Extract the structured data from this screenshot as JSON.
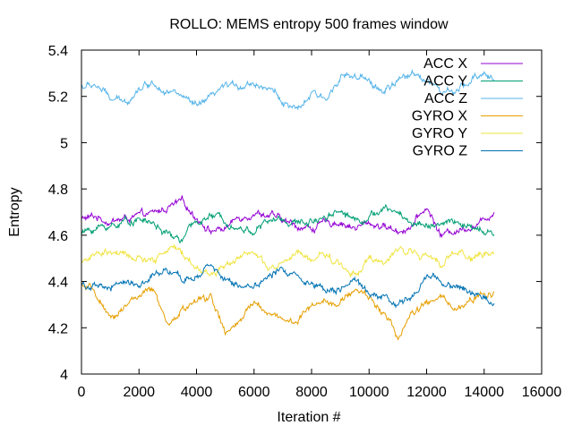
{
  "chart_data": {
    "type": "line",
    "title": "ROLLO: MEMS entropy 500 frames window",
    "xlabel": "Iteration #",
    "ylabel": "Entropy",
    "xlim": [
      0,
      16000
    ],
    "ylim": [
      4,
      5.4
    ],
    "xticks": [
      "0",
      "2000",
      "4000",
      "6000",
      "8000",
      "10000",
      "12000",
      "14000",
      "16000"
    ],
    "yticks": [
      "4",
      "4.2",
      "4.4",
      "4.6",
      "4.8",
      "5",
      "5.2",
      "5.4"
    ],
    "grid": false,
    "legend_position": "top-right",
    "series": [
      {
        "name": "ACC X",
        "color": "#9400d3",
        "x": [
          0,
          500,
          1000,
          1500,
          2000,
          2500,
          3000,
          3500,
          4000,
          4500,
          5000,
          5500,
          6000,
          6500,
          7000,
          7500,
          8000,
          8500,
          9000,
          9500,
          10000,
          10500,
          11000,
          11500,
          12000,
          12500,
          13000,
          13500,
          14000,
          14350
        ],
        "values": [
          4.67,
          4.68,
          4.66,
          4.67,
          4.68,
          4.69,
          4.72,
          4.74,
          4.68,
          4.62,
          4.63,
          4.68,
          4.7,
          4.69,
          4.66,
          4.64,
          4.63,
          4.65,
          4.66,
          4.63,
          4.65,
          4.64,
          4.62,
          4.64,
          4.72,
          4.6,
          4.62,
          4.64,
          4.66,
          4.71
        ]
      },
      {
        "name": "ACC Y",
        "color": "#009e73",
        "x": [
          0,
          500,
          1000,
          1500,
          2000,
          2500,
          3000,
          3500,
          4000,
          4500,
          5000,
          5500,
          6000,
          6500,
          7000,
          7500,
          8000,
          8500,
          9000,
          9500,
          10000,
          10500,
          11000,
          11500,
          12000,
          12500,
          13000,
          13500,
          14000,
          14350
        ],
        "values": [
          4.61,
          4.63,
          4.64,
          4.66,
          4.67,
          4.65,
          4.6,
          4.58,
          4.66,
          4.68,
          4.67,
          4.63,
          4.62,
          4.66,
          4.67,
          4.65,
          4.66,
          4.69,
          4.71,
          4.67,
          4.68,
          4.71,
          4.7,
          4.65,
          4.65,
          4.64,
          4.66,
          4.63,
          4.61,
          4.6
        ]
      },
      {
        "name": "ACC Z",
        "color": "#56b4e9",
        "x": [
          0,
          500,
          1000,
          1500,
          2000,
          2500,
          3000,
          3500,
          4000,
          4500,
          5000,
          5500,
          6000,
          6500,
          7000,
          7500,
          8000,
          8500,
          9000,
          9500,
          10000,
          10500,
          11000,
          11500,
          12000,
          12500,
          13000,
          13500,
          14000,
          14350
        ],
        "values": [
          5.24,
          5.25,
          5.19,
          5.17,
          5.24,
          5.26,
          5.23,
          5.2,
          5.15,
          5.19,
          5.24,
          5.25,
          5.26,
          5.24,
          5.18,
          5.13,
          5.21,
          5.18,
          5.3,
          5.28,
          5.26,
          5.22,
          5.26,
          5.3,
          5.28,
          5.22,
          5.21,
          5.26,
          5.31,
          5.27
        ]
      },
      {
        "name": "GYRO X",
        "color": "#e69f00",
        "x": [
          0,
          500,
          1000,
          1500,
          2000,
          2500,
          3000,
          3500,
          4000,
          4500,
          5000,
          5500,
          6000,
          6500,
          7000,
          7500,
          8000,
          8500,
          9000,
          9500,
          10000,
          10500,
          11000,
          11500,
          12000,
          12500,
          13000,
          13500,
          14000,
          14350
        ],
        "values": [
          4.38,
          4.35,
          4.22,
          4.3,
          4.34,
          4.36,
          4.2,
          4.28,
          4.31,
          4.34,
          4.17,
          4.22,
          4.31,
          4.27,
          4.24,
          4.22,
          4.3,
          4.33,
          4.3,
          4.37,
          4.33,
          4.27,
          4.16,
          4.26,
          4.3,
          4.33,
          4.27,
          4.32,
          4.34,
          4.35
        ]
      },
      {
        "name": "GYRO Y",
        "color": "#f0e442",
        "x": [
          0,
          500,
          1000,
          1500,
          2000,
          2500,
          3000,
          3500,
          4000,
          4500,
          5000,
          5500,
          6000,
          6500,
          7000,
          7500,
          8000,
          8500,
          9000,
          9500,
          10000,
          10500,
          11000,
          11500,
          12000,
          12500,
          13000,
          13500,
          14000,
          14350
        ],
        "values": [
          4.49,
          4.51,
          4.53,
          4.51,
          4.5,
          4.48,
          4.55,
          4.52,
          4.46,
          4.43,
          4.47,
          4.52,
          4.52,
          4.45,
          4.47,
          4.52,
          4.49,
          4.52,
          4.47,
          4.43,
          4.5,
          4.47,
          4.53,
          4.54,
          4.5,
          4.48,
          4.53,
          4.51,
          4.52,
          4.52
        ]
      },
      {
        "name": "GYRO Z",
        "color": "#0072b2",
        "x": [
          0,
          500,
          1000,
          1500,
          2000,
          2500,
          3000,
          3500,
          4000,
          4500,
          5000,
          5500,
          6000,
          6500,
          7000,
          7500,
          8000,
          8500,
          9000,
          9500,
          10000,
          10500,
          11000,
          11500,
          12000,
          12500,
          13000,
          13500,
          14000,
          14350
        ],
        "values": [
          4.39,
          4.37,
          4.37,
          4.4,
          4.39,
          4.42,
          4.44,
          4.4,
          4.43,
          4.46,
          4.41,
          4.38,
          4.39,
          4.42,
          4.45,
          4.43,
          4.39,
          4.38,
          4.37,
          4.39,
          4.35,
          4.34,
          4.29,
          4.33,
          4.44,
          4.4,
          4.38,
          4.35,
          4.33,
          4.31
        ]
      }
    ]
  }
}
